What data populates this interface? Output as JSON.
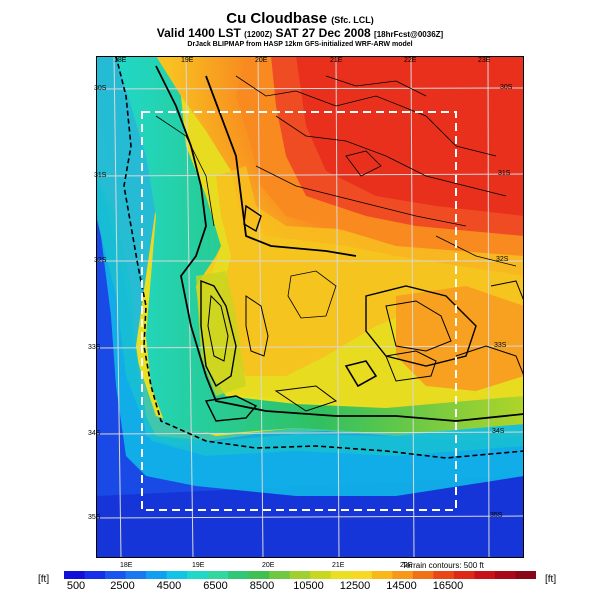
{
  "header": {
    "title": "Cu Cloudbase",
    "title_sub": "(Sfc. LCL)",
    "valid_main": "Valid 1400 LST",
    "valid_small1": "(1200Z)",
    "valid_date": "SAT 27 Dec 2008",
    "valid_small2": "[18hrFcst@0036Z]",
    "credit": "DrJack BLIPMAP from HASP 12km GFS-initialized WRF-ARW model"
  },
  "map": {
    "lon_top": [
      "18E",
      "19E",
      "20E",
      "21E",
      "22E",
      "23E"
    ],
    "lon_bottom": [
      "18E",
      "19E",
      "20E",
      "21E",
      "22E"
    ],
    "lat_left": [
      "30S",
      "31S",
      "32S",
      "33S",
      "34S",
      "35S"
    ],
    "lat_right": [
      "30S",
      "31S",
      "32S",
      "33S",
      "34S",
      "35S"
    ],
    "terrain_note": "Terrain contours: 500 ft",
    "colors": {
      "ocean": "#1a4ae6",
      "high": "#f03c2a"
    }
  },
  "colorbar": {
    "unit_left": "[ft]",
    "unit_right": "[ft]",
    "labels": [
      "500",
      "2500",
      "4500",
      "6500",
      "8500",
      "10500",
      "12500",
      "14500",
      "16500"
    ],
    "colors": [
      "#1010d8",
      "#1530e8",
      "#1a55f0",
      "#1a78f0",
      "#10a0f0",
      "#10c4e8",
      "#20d8c8",
      "#30d8a0",
      "#30c878",
      "#40c050",
      "#70c840",
      "#a0d030",
      "#c8d820",
      "#e8e020",
      "#f8d820",
      "#f8b818",
      "#f89818",
      "#f07018",
      "#e84818",
      "#e02818",
      "#c81018",
      "#a80818",
      "#880618"
    ]
  }
}
